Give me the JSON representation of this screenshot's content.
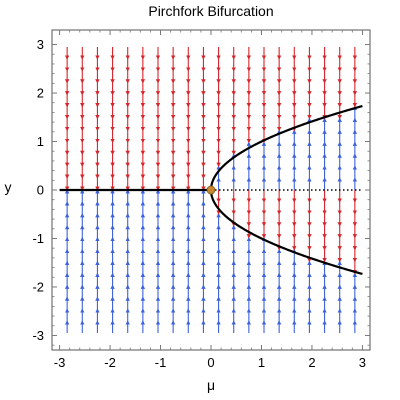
{
  "chart_data": {
    "type": "vector-field",
    "title": "Pirchfork Bifurcation",
    "xlabel": "μ",
    "ylabel": "y",
    "xlim": [
      -3.15,
      3.15
    ],
    "ylim": [
      -3.3,
      3.3
    ],
    "x_ticks": [
      -3,
      -2,
      -1,
      0,
      1,
      2,
      3
    ],
    "x_tick_labels": [
      "-3",
      "-2",
      "-1",
      "0",
      "1",
      "2",
      "3"
    ],
    "y_ticks": [
      -3,
      -2,
      -1,
      0,
      1,
      2,
      3
    ],
    "y_tick_labels": [
      "-3",
      "-2",
      "-1",
      "0",
      "1",
      "2",
      "3"
    ],
    "field_x": [
      -2.85,
      -2.55,
      -2.25,
      -1.95,
      -1.65,
      -1.35,
      -1.05,
      -0.75,
      -0.45,
      -0.15,
      0.15,
      0.45,
      0.75,
      1.05,
      1.35,
      1.65,
      1.95,
      2.25,
      2.55,
      2.85
    ],
    "field_y_range": [
      -2.95,
      2.95
    ],
    "field_equation": "dy/dt = μ·y − y³",
    "colors": {
      "flow_down": "#d7262b",
      "flow_up": "#3c62de",
      "stable_branch": "#000000",
      "unstable_branch": "#000000",
      "bifurcation_point": "#c9872f",
      "frame": "#555555",
      "grid_tick": "#777777"
    },
    "series": [
      {
        "type": "line",
        "style": "solid",
        "x": [
          -3,
          0
        ],
        "y": [
          0,
          0
        ]
      },
      {
        "type": "line",
        "style": "dotted",
        "x": [
          0,
          3
        ],
        "y": [
          0,
          0
        ]
      },
      {
        "type": "curve",
        "style": "solid",
        "equation": "y = √μ",
        "x_range": [
          0,
          3
        ]
      },
      {
        "type": "curve",
        "style": "solid",
        "equation": "y = −√μ",
        "x_range": [
          0,
          3
        ]
      },
      {
        "type": "point",
        "x": 0,
        "y": 0
      }
    ]
  }
}
